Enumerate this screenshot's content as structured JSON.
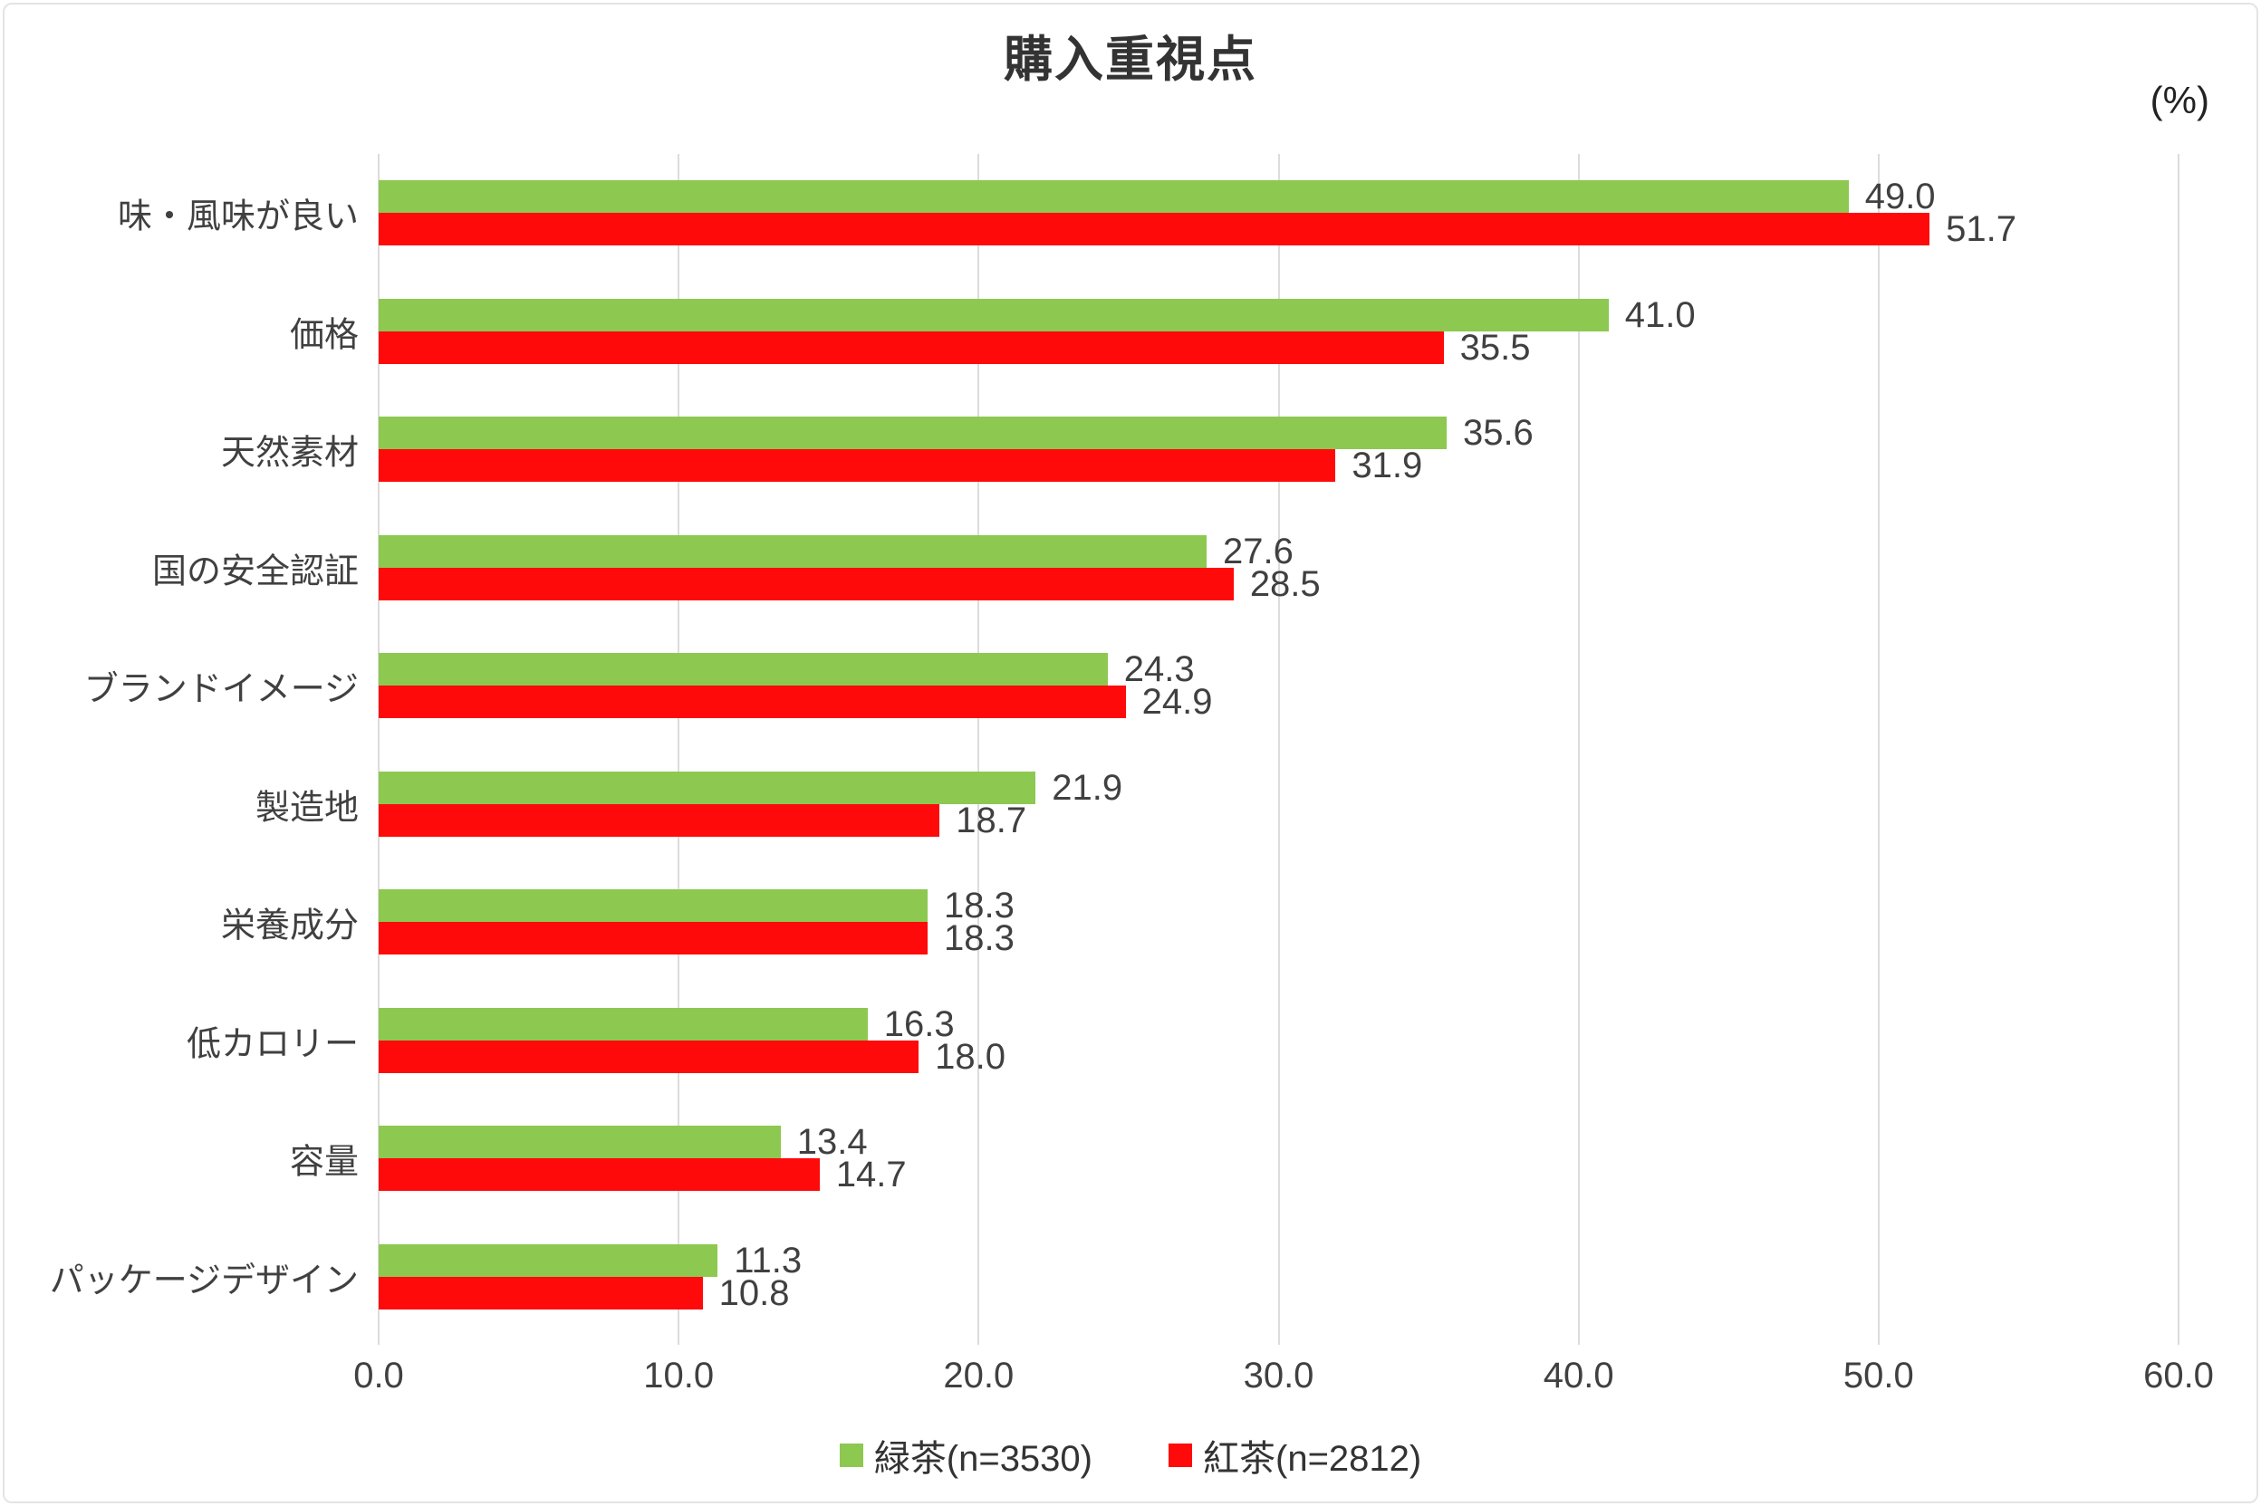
{
  "title": "購入重視点",
  "unit_label": "(%)",
  "chart_data": {
    "type": "bar",
    "orientation": "horizontal",
    "title": "購入重視点",
    "unit": "%",
    "categories": [
      "味・風味が良い",
      "価格",
      "天然素材",
      "国の安全認証",
      "ブランドイメージ",
      "製造地",
      "栄養成分",
      "低カロリー",
      "容量",
      "パッケージデザイン"
    ],
    "series": [
      {
        "name": "緑茶(n=3530)",
        "color": "#8DC850",
        "values": [
          49.0,
          41.0,
          35.6,
          27.6,
          24.3,
          21.9,
          18.3,
          16.3,
          13.4,
          11.3
        ]
      },
      {
        "name": "紅茶(n=2812)",
        "color": "#FE0A0A",
        "values": [
          51.7,
          35.5,
          31.9,
          28.5,
          24.9,
          18.7,
          18.3,
          18.0,
          14.7,
          10.8
        ]
      }
    ],
    "xlim": [
      0,
      60
    ],
    "xticks": [
      "0.0",
      "10.0",
      "20.0",
      "30.0",
      "40.0",
      "50.0",
      "60.0"
    ],
    "grid": true,
    "gridline_color": "#DCDCDC",
    "value_labels": true,
    "legend_position": "bottom"
  }
}
